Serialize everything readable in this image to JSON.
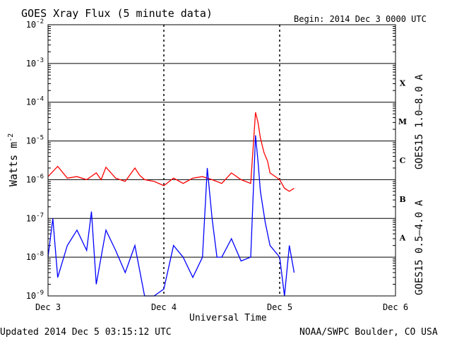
{
  "header": {
    "title": "GOES Xray Flux (5 minute data)",
    "begin": "Begin:  2014 Dec 3 0000 UTC"
  },
  "footer": {
    "updated": "Updated 2014 Dec  5 03:15:12 UTC",
    "credit": "NOAA/SWPC Boulder, CO USA"
  },
  "chart_data": {
    "type": "line",
    "ylabel": "Watts m",
    "ylabel_exp": "-2",
    "xlabel": "Universal Time",
    "y_scale": "log",
    "ylim": [
      1e-09,
      0.01
    ],
    "xlim": [
      "2014-12-03 00:00",
      "2014-12-06 00:00"
    ],
    "y_ticks": [
      {
        "base": "10",
        "exp": "-2"
      },
      {
        "base": "10",
        "exp": "-3"
      },
      {
        "base": "10",
        "exp": "-4"
      },
      {
        "base": "10",
        "exp": "-5"
      },
      {
        "base": "10",
        "exp": "-6"
      },
      {
        "base": "10",
        "exp": "-7"
      },
      {
        "base": "10",
        "exp": "-8"
      },
      {
        "base": "10",
        "exp": "-9"
      }
    ],
    "x_ticks": [
      "Dec 3",
      "Dec 4",
      "Dec 5",
      "Dec 6"
    ],
    "flare_classes": [
      "X",
      "M",
      "C",
      "B",
      "A"
    ],
    "series": [
      {
        "name": "GOES15 1.0–8.0 A",
        "color": "#ff0000",
        "x": [
          "2014-12-03 00:00",
          "2014-12-03 02:00",
          "2014-12-03 04:00",
          "2014-12-03 06:00",
          "2014-12-03 08:00",
          "2014-12-03 10:00",
          "2014-12-03 11:00",
          "2014-12-03 12:00",
          "2014-12-03 14:00",
          "2014-12-03 16:00",
          "2014-12-03 18:00",
          "2014-12-03 19:00",
          "2014-12-03 20:00",
          "2014-12-03 22:00",
          "2014-12-04 00:00",
          "2014-12-04 02:00",
          "2014-12-04 04:00",
          "2014-12-04 06:00",
          "2014-12-04 08:00",
          "2014-12-04 10:00",
          "2014-12-04 12:00",
          "2014-12-04 14:00",
          "2014-12-04 16:00",
          "2014-12-04 18:00",
          "2014-12-04 19:00",
          "2014-12-04 19:30",
          "2014-12-04 20:00",
          "2014-12-04 20:45",
          "2014-12-04 21:30",
          "2014-12-04 22:00",
          "2014-12-05 00:00",
          "2014-12-05 01:00",
          "2014-12-05 02:00",
          "2014-12-05 03:00"
        ],
        "values": [
          1.2e-06,
          2.2e-06,
          1.1e-06,
          1.2e-06,
          1e-06,
          1.5e-06,
          1e-06,
          2.1e-06,
          1.1e-06,
          9e-07,
          2e-06,
          1.3e-06,
          1e-06,
          9e-07,
          7e-07,
          1.1e-06,
          8e-07,
          1.1e-06,
          1.2e-06,
          1e-06,
          8e-07,
          1.5e-06,
          1e-06,
          8e-07,
          5.5e-05,
          3e-05,
          1.2e-05,
          5e-06,
          3e-06,
          1.5e-06,
          1e-06,
          6e-07,
          5e-07,
          6e-07
        ]
      },
      {
        "name": "GOES15 0.5–4.0 A",
        "color": "#0000ff",
        "x": [
          "2014-12-03 00:00",
          "2014-12-03 01:00",
          "2014-12-03 02:00",
          "2014-12-03 04:00",
          "2014-12-03 06:00",
          "2014-12-03 08:00",
          "2014-12-03 09:00",
          "2014-12-03 10:00",
          "2014-12-03 12:00",
          "2014-12-03 14:00",
          "2014-12-03 16:00",
          "2014-12-03 18:00",
          "2014-12-03 20:00",
          "2014-12-03 22:00",
          "2014-12-04 00:00",
          "2014-12-04 02:00",
          "2014-12-04 04:00",
          "2014-12-04 06:00",
          "2014-12-04 08:00",
          "2014-12-04 09:00",
          "2014-12-04 10:00",
          "2014-12-04 11:00",
          "2014-12-04 12:00",
          "2014-12-04 14:00",
          "2014-12-04 16:00",
          "2014-12-04 18:00",
          "2014-12-04 19:00",
          "2014-12-04 19:30",
          "2014-12-04 20:00",
          "2014-12-04 21:00",
          "2014-12-04 22:00",
          "2014-12-05 00:00",
          "2014-12-05 01:00",
          "2014-12-05 02:00",
          "2014-12-05 03:00"
        ],
        "values": [
          1e-08,
          1e-07,
          3e-09,
          2e-08,
          5e-08,
          1.5e-08,
          1.5e-07,
          2e-09,
          5e-08,
          1.5e-08,
          4e-09,
          2e-08,
          1e-09,
          1e-09,
          1.5e-09,
          2e-08,
          1e-08,
          3e-09,
          1e-08,
          2e-06,
          1e-07,
          1e-08,
          1e-08,
          3e-08,
          8e-09,
          1e-08,
          1.4e-05,
          3e-06,
          5e-07,
          8e-08,
          2e-08,
          1e-08,
          1e-09,
          2e-08,
          4e-09
        ]
      }
    ]
  }
}
